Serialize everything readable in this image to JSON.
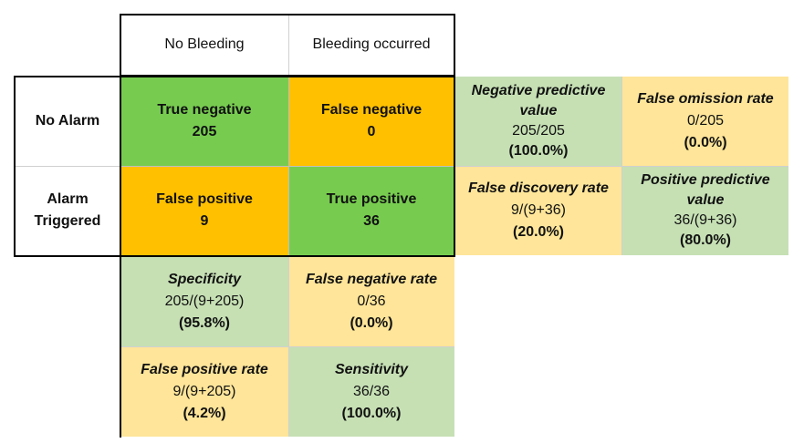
{
  "columns": {
    "no_bleeding": "No Bleeding",
    "bleeding_occurred": "Bleeding occurred"
  },
  "rows": {
    "no_alarm": "No Alarm",
    "alarm_line1": "Alarm",
    "alarm_line2": "Triggered"
  },
  "matrix": {
    "true_negative": {
      "label": "True negative",
      "value": "205"
    },
    "false_negative": {
      "label": "False negative",
      "value": "0"
    },
    "false_positive": {
      "label": "False positive",
      "value": "9"
    },
    "true_positive": {
      "label": "True positive",
      "value": "36"
    }
  },
  "row_metrics": {
    "npv": {
      "line1": "Negative predictive",
      "line2": "value",
      "formula": "205/205",
      "result": "(100.0%)"
    },
    "for": {
      "label": "False omission rate",
      "formula": "0/205",
      "result": "(0.0%)"
    },
    "fdr": {
      "label": "False discovery rate",
      "formula": "9/(9+36)",
      "result": "(20.0%)"
    },
    "ppv": {
      "line1": "Positive predictive",
      "line2": "value",
      "formula": "36/(9+36)",
      "result": "(80.0%)"
    }
  },
  "col_metrics": {
    "specificity": {
      "label": "Specificity",
      "formula": "205/(9+205)",
      "result": "(95.8%)"
    },
    "fnr": {
      "label": "False negative rate",
      "formula": "0/36",
      "result": "(0.0%)"
    },
    "fpr": {
      "label": "False positive rate",
      "formula": "9/(9+205)",
      "result": "(4.2%)"
    },
    "sensitivity": {
      "label": "Sensitivity",
      "formula": "36/36",
      "result": "(100.0%)"
    }
  },
  "colors": {
    "true_cell": "#77cc4f",
    "false_cell": "#ffc000",
    "good_metric": "#c6e0b4",
    "bad_metric": "#fee599"
  }
}
